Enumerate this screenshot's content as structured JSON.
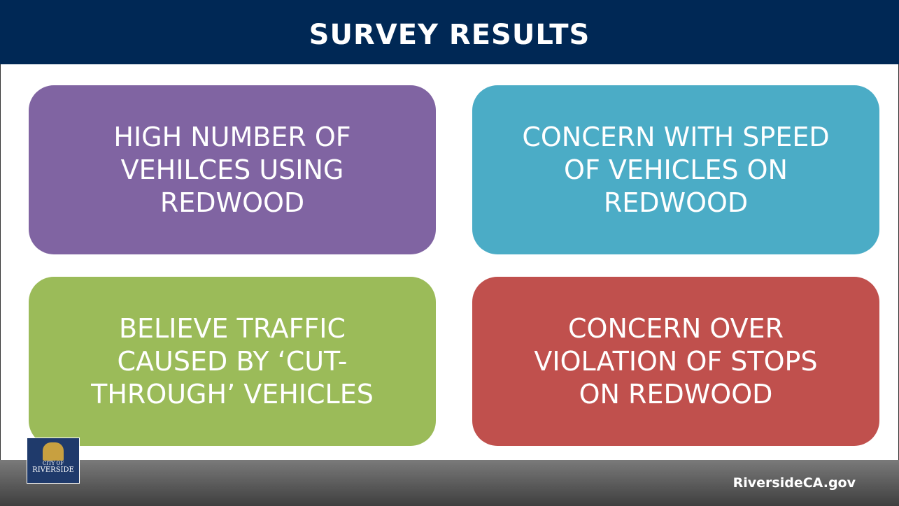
{
  "header": {
    "title": "SURVEY RESULTS"
  },
  "cards": [
    {
      "lines": [
        "HIGH NUMBER OF",
        "VEHILCES USING",
        "REDWOOD"
      ],
      "color": "#8064a2"
    },
    {
      "lines": [
        "CONCERN WITH SPEED",
        "OF VEHICLES ON",
        "REDWOOD"
      ],
      "color": "#4bacc6"
    },
    {
      "lines": [
        "BELIEVE TRAFFIC",
        "CAUSED BY ‘CUT-",
        "THROUGH’ VEHICLES"
      ],
      "color": "#9bbb59"
    },
    {
      "lines": [
        "CONCERN OVER",
        "VIOLATION OF STOPS",
        "ON REDWOOD"
      ],
      "color": "#c0504d"
    }
  ],
  "footer": {
    "logo_small": "CITY OF",
    "logo": "RIVERSIDE",
    "url": "RiversideCA.gov"
  }
}
